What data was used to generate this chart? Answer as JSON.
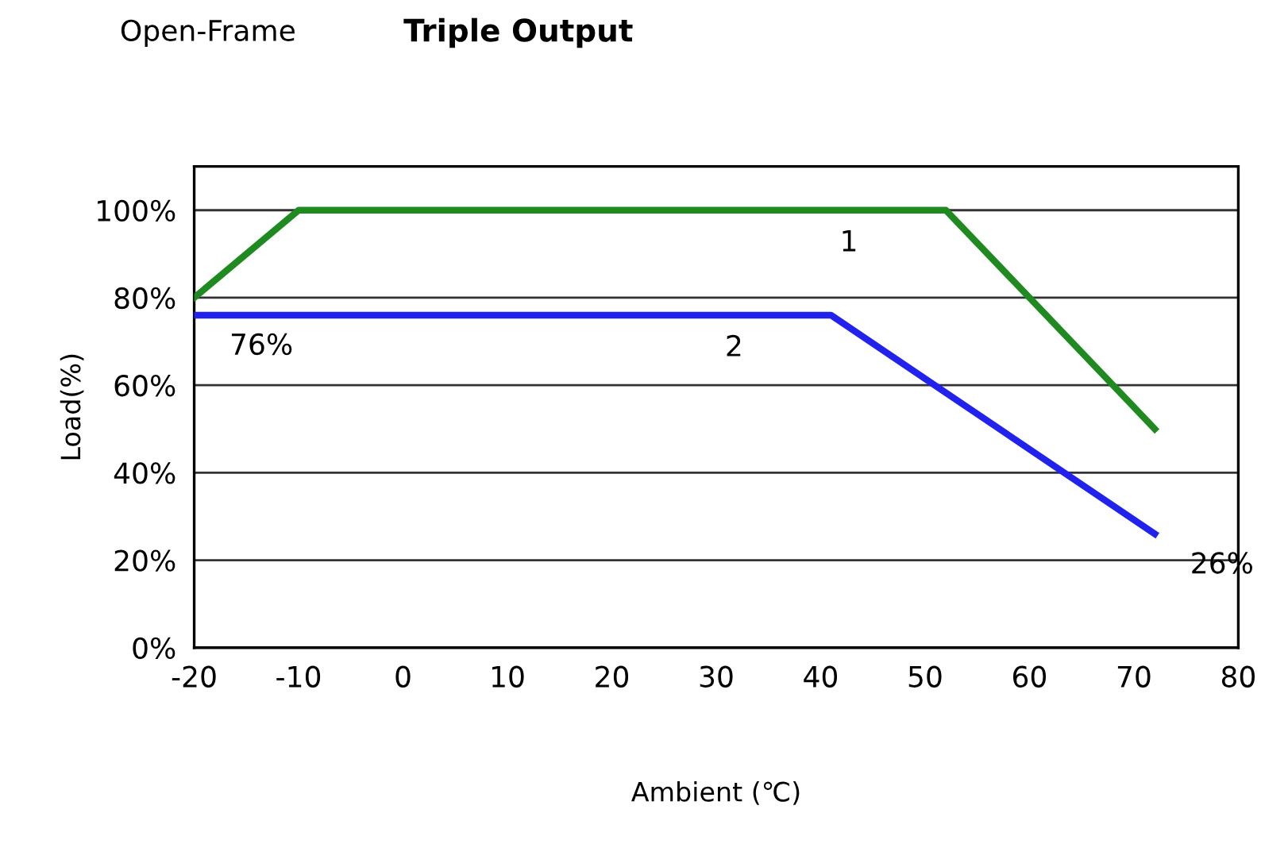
{
  "chart_data": {
    "type": "line",
    "title": "Triple Output",
    "subtitle": "Open-Frame",
    "xlabel": "Ambient (℃)",
    "ylabel": "Load(%)",
    "series": [
      {
        "name": "1",
        "x": [
          -20,
          -10,
          52,
          72
        ],
        "values": [
          80,
          100,
          100,
          50
        ],
        "color": "#1f8a1f"
      },
      {
        "name": "2",
        "x": [
          -20,
          41,
          72
        ],
        "values": [
          76,
          76,
          26
        ],
        "color": "#2222ee"
      }
    ],
    "xlim": [
      -20,
      80
    ],
    "xticks": [
      -20,
      -10,
      0,
      10,
      20,
      30,
      40,
      50,
      60,
      70,
      80
    ],
    "ylim": [
      0,
      110
    ],
    "yticks": [
      {
        "value": 0,
        "label": "0%"
      },
      {
        "value": 20,
        "label": "20%"
      },
      {
        "value": 40,
        "label": "40%"
      },
      {
        "value": 60,
        "label": "60%"
      },
      {
        "value": 80,
        "label": "80%"
      },
      {
        "value": 100,
        "label": "100%"
      }
    ],
    "grid": "y",
    "marker": "none",
    "line_style": "solid",
    "annotations": [
      {
        "text": "76%",
        "x": -20,
        "y": 76
      },
      {
        "text": "26%",
        "x": 72,
        "y": 26
      }
    ]
  }
}
